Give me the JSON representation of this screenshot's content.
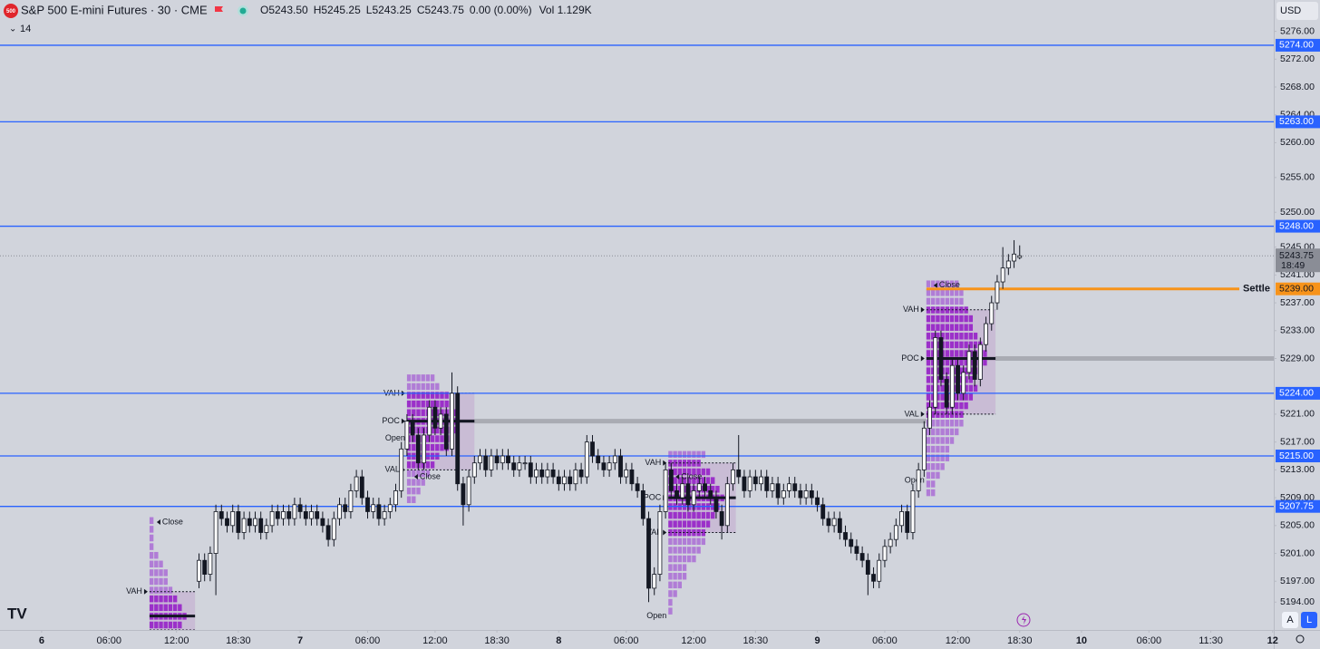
{
  "header": {
    "logo": "500",
    "symbol": "S&P 500 E-mini Futures · 30 · CME",
    "ohlc": [
      "O5243.50",
      "H5245.25",
      "L5243.25",
      "C5243.75",
      "0.00 (0.00%)"
    ],
    "volume": "Vol 1.129K",
    "indicator_count": "14",
    "currency": "USD",
    "buttons": [
      "A",
      "L"
    ]
  },
  "chart_data": {
    "type": "candlestick",
    "x": [
      28,
      29,
      30,
      31,
      32,
      33,
      34,
      35,
      36,
      37,
      38,
      39,
      40,
      41,
      42,
      43,
      44,
      45,
      46,
      47,
      48,
      49,
      50,
      51,
      52,
      53,
      54,
      55,
      56,
      57,
      58,
      59,
      60,
      61,
      62,
      63,
      64,
      65,
      66,
      67,
      68,
      69,
      70,
      71,
      72,
      73,
      74,
      75,
      76,
      77,
      78,
      79,
      80,
      81,
      82,
      83,
      84,
      85,
      86,
      87,
      88,
      89,
      90,
      91,
      92,
      93,
      94,
      95,
      96,
      97,
      98,
      99,
      100,
      101,
      102,
      103,
      104,
      105,
      106,
      107,
      108,
      109,
      110,
      111,
      112,
      113,
      114,
      115,
      116,
      117,
      118,
      119,
      120,
      121,
      122,
      123,
      124,
      125,
      126,
      127,
      128,
      129,
      130,
      131,
      132,
      133,
      134,
      135,
      136,
      137,
      138,
      139,
      140,
      141,
      142,
      143,
      144,
      145,
      146,
      147,
      148,
      149,
      150,
      151,
      152,
      153,
      154,
      155,
      156,
      157,
      158,
      159,
      160,
      161,
      162,
      163,
      164,
      165,
      166,
      167,
      168,
      169,
      170,
      171,
      172,
      173,
      174
    ],
    "open": [
      5197,
      5200,
      5198,
      5201,
      5207,
      5206,
      5205,
      5207,
      5204,
      5206,
      5205,
      5206,
      5204,
      5205,
      5207,
      5206,
      5207,
      5206,
      5208,
      5207,
      5206,
      5207,
      5206,
      5205,
      5203,
      5206,
      5208,
      5207,
      5210,
      5212,
      5209,
      5207,
      5208,
      5206,
      5207,
      5208,
      5210,
      5216,
      5220,
      5218,
      5214,
      5218,
      5222,
      5219,
      5221,
      5216,
      5224,
      5211,
      5208,
      5212,
      5214,
      5215,
      5213,
      5215,
      5214,
      5215,
      5214,
      5213,
      5214,
      5214,
      5212,
      5213,
      5212,
      5213,
      5212,
      5211,
      5212,
      5211,
      5213,
      5212,
      5217,
      5215,
      5214,
      5213,
      5214,
      5215,
      5212,
      5213,
      5211,
      5210,
      5206,
      5196,
      5198,
      5207,
      5213,
      5210,
      5209,
      5211,
      5208,
      5210,
      5211,
      5210,
      5209,
      5207,
      5205,
      5211,
      5213,
      5212,
      5210,
      5212,
      5211,
      5212,
      5210,
      5211,
      5209,
      5210,
      5211,
      5210,
      5209,
      5210,
      5209,
      5208,
      5206,
      5205,
      5206,
      5204,
      5203,
      5202,
      5201,
      5200,
      5198,
      5197,
      5200,
      5202,
      5203,
      5205,
      5207,
      5204,
      5210,
      5213,
      5219,
      5222,
      5232,
      5226,
      5222,
      5228,
      5224,
      5227,
      5230,
      5226,
      5231,
      5234,
      5237,
      5240,
      5242,
      5243,
      5243.5
    ],
    "high": [
      5201,
      5201,
      5202,
      5208,
      5208,
      5207,
      5208,
      5208,
      5207,
      5207,
      5207,
      5207,
      5206,
      5208,
      5208,
      5208,
      5208,
      5209,
      5209,
      5208,
      5208,
      5208,
      5207,
      5206,
      5207,
      5209,
      5209,
      5211,
      5213,
      5213,
      5210,
      5209,
      5209,
      5208,
      5209,
      5211,
      5217,
      5221,
      5221,
      5219,
      5219,
      5223,
      5223,
      5222,
      5222,
      5227,
      5225,
      5212,
      5213,
      5215,
      5216,
      5216,
      5216,
      5216,
      5216,
      5216,
      5215,
      5215,
      5215,
      5215,
      5214,
      5214,
      5214,
      5214,
      5213,
      5213,
      5213,
      5214,
      5214,
      5218,
      5218,
      5216,
      5215,
      5215,
      5216,
      5216,
      5214,
      5214,
      5212,
      5211,
      5207,
      5199,
      5208,
      5214,
      5214,
      5211,
      5212,
      5212,
      5211,
      5212,
      5212,
      5211,
      5210,
      5208,
      5212,
      5214,
      5218,
      5213,
      5213,
      5213,
      5213,
      5213,
      5212,
      5212,
      5211,
      5212,
      5212,
      5211,
      5211,
      5211,
      5210,
      5209,
      5207,
      5207,
      5207,
      5205,
      5204,
      5203,
      5202,
      5201,
      5199,
      5201,
      5203,
      5204,
      5206,
      5208,
      5208,
      5211,
      5214,
      5220,
      5223,
      5233,
      5233,
      5227,
      5229,
      5229,
      5228,
      5231,
      5231,
      5232,
      5235,
      5238,
      5241,
      5245,
      5244,
      5246,
      5245.25
    ],
    "low": [
      5196,
      5197,
      5197,
      5195,
      5205,
      5204,
      5204,
      5203,
      5203,
      5204,
      5204,
      5203,
      5203,
      5204,
      5205,
      5205,
      5205,
      5205,
      5206,
      5205,
      5205,
      5205,
      5204,
      5202,
      5202,
      5205,
      5206,
      5206,
      5209,
      5208,
      5206,
      5206,
      5205,
      5205,
      5206,
      5207,
      5209,
      5215,
      5217,
      5213,
      5213,
      5217,
      5218,
      5218,
      5215,
      5215,
      5210,
      5205,
      5207,
      5211,
      5213,
      5212,
      5212,
      5213,
      5213,
      5213,
      5212,
      5212,
      5213,
      5211,
      5211,
      5211,
      5211,
      5211,
      5210,
      5210,
      5210,
      5210,
      5211,
      5211,
      5214,
      5213,
      5212,
      5212,
      5213,
      5211,
      5211,
      5210,
      5209,
      5205,
      5194,
      5195,
      5197,
      5206,
      5209,
      5208,
      5208,
      5207,
      5207,
      5209,
      5209,
      5208,
      5206,
      5203,
      5204,
      5210,
      5211,
      5209,
      5209,
      5210,
      5210,
      5209,
      5209,
      5208,
      5208,
      5209,
      5209,
      5208,
      5208,
      5208,
      5207,
      5205,
      5204,
      5204,
      5203,
      5202,
      5201,
      5200,
      5199,
      5195,
      5196,
      5196,
      5199,
      5201,
      5202,
      5204,
      5203,
      5203,
      5209,
      5212,
      5218,
      5221,
      5225,
      5221,
      5221,
      5223,
      5223,
      5226,
      5225,
      5225,
      5230,
      5233,
      5236,
      5239,
      5241,
      5242,
      5243.25
    ],
    "close": [
      5200,
      5198,
      5201,
      5207,
      5206,
      5205,
      5207,
      5204,
      5206,
      5205,
      5206,
      5204,
      5205,
      5207,
      5206,
      5207,
      5206,
      5208,
      5207,
      5206,
      5207,
      5206,
      5205,
      5203,
      5206,
      5208,
      5207,
      5210,
      5212,
      5209,
      5207,
      5208,
      5206,
      5207,
      5208,
      5210,
      5216,
      5220,
      5218,
      5214,
      5218,
      5222,
      5219,
      5221,
      5216,
      5224,
      5211,
      5208,
      5212,
      5214,
      5215,
      5213,
      5215,
      5214,
      5215,
      5214,
      5213,
      5214,
      5214,
      5212,
      5213,
      5212,
      5213,
      5212,
      5211,
      5212,
      5211,
      5213,
      5212,
      5217,
      5215,
      5214,
      5213,
      5214,
      5215,
      5212,
      5213,
      5211,
      5210,
      5206,
      5196,
      5198,
      5207,
      5213,
      5210,
      5209,
      5211,
      5208,
      5210,
      5211,
      5210,
      5209,
      5207,
      5205,
      5211,
      5213,
      5212,
      5210,
      5212,
      5211,
      5212,
      5210,
      5211,
      5209,
      5210,
      5211,
      5210,
      5209,
      5210,
      5209,
      5208,
      5206,
      5205,
      5206,
      5204,
      5203,
      5202,
      5201,
      5200,
      5198,
      5197,
      5200,
      5202,
      5203,
      5205,
      5207,
      5204,
      5210,
      5213,
      5219,
      5222,
      5232,
      5226,
      5222,
      5228,
      5224,
      5227,
      5230,
      5226,
      5231,
      5234,
      5237,
      5240,
      5242,
      5243,
      5244,
      5243.75
    ],
    "xlim": [
      -7.4,
      219.2
    ],
    "xticks": [
      {
        "value": 0,
        "label": "6"
      },
      {
        "value": 12,
        "label": "06:00"
      },
      {
        "value": 24,
        "label": "12:00"
      },
      {
        "value": 35,
        "label": "18:30"
      },
      {
        "value": 46,
        "label": "7"
      },
      {
        "value": 58,
        "label": "06:00"
      },
      {
        "value": 70,
        "label": "12:00"
      },
      {
        "value": 81,
        "label": "18:30"
      },
      {
        "value": 92,
        "label": "8"
      },
      {
        "value": 104,
        "label": "06:00"
      },
      {
        "value": 116,
        "label": "12:00"
      },
      {
        "value": 127,
        "label": "18:30"
      },
      {
        "value": 138,
        "label": "9"
      },
      {
        "value": 150,
        "label": "06:00"
      },
      {
        "value": 163,
        "label": "12:00"
      },
      {
        "value": 174,
        "label": "18:30"
      },
      {
        "value": 185,
        "label": "10"
      },
      {
        "value": 197,
        "label": "06:00"
      },
      {
        "value": 208,
        "label": "11:30"
      },
      {
        "value": 219,
        "label": "12"
      }
    ],
    "ylim": [
      5190,
      5280.5
    ],
    "yticks": [
      {
        "value": 5276,
        "label": "5276.00"
      },
      {
        "value": 5272,
        "label": "5272.00"
      },
      {
        "value": 5268,
        "label": "5268.00"
      },
      {
        "value": 5264,
        "label": "5264.00"
      },
      {
        "value": 5260,
        "label": "5260.00"
      },
      {
        "value": 5255,
        "label": "5255.00"
      },
      {
        "value": 5250,
        "label": "5250.00"
      },
      {
        "value": 5245,
        "label": "5245.00"
      },
      {
        "value": 5241,
        "label": "5241.00"
      },
      {
        "value": 5237,
        "label": "5237.00"
      },
      {
        "value": 5233,
        "label": "5233.00"
      },
      {
        "value": 5229,
        "label": "5229.00"
      },
      {
        "value": 5221,
        "label": "5221.00"
      },
      {
        "value": 5217,
        "label": "5217.00"
      },
      {
        "value": 5213,
        "label": "5213.00"
      },
      {
        "value": 5209,
        "label": "5209.00"
      },
      {
        "value": 5205,
        "label": "5205.00"
      },
      {
        "value": 5201,
        "label": "5201.00"
      },
      {
        "value": 5197,
        "label": "5197.00"
      },
      {
        "value": 5194,
        "label": "5194.00"
      }
    ],
    "levels": [
      {
        "value": 5274,
        "label": "5274.00",
        "color": "#2962ff"
      },
      {
        "value": 5263,
        "label": "5263.00",
        "color": "#2962ff"
      },
      {
        "value": 5248,
        "label": "5248.00",
        "color": "#2962ff"
      },
      {
        "value": 5224,
        "label": "5224.00",
        "color": "#2962ff"
      },
      {
        "value": 5215,
        "label": "5215.00",
        "color": "#2962ff"
      },
      {
        "value": 5207.75,
        "label": "5207.75",
        "color": "#2962ff"
      }
    ],
    "settle": {
      "value": 5239,
      "label": "5239.00",
      "name": "Settle",
      "color": "#f7931a",
      "x_start": 157.4
    },
    "last_price": {
      "value": 5243.75,
      "label": "5243.75",
      "countdown": "18:49"
    },
    "profiles": [
      {
        "x": [
          19.2,
          27.3
        ],
        "low": 5190,
        "high": 5205.75,
        "vah": 5195.5,
        "poc": 5192,
        "val": 5190,
        "labels": {
          "vah": "VAH",
          "close": "Close"
        },
        "close": 5205.5
      },
      {
        "x": [
          65,
          77
        ],
        "low": 5208,
        "high": 5226.5,
        "vah": 5224,
        "poc": 5220,
        "val": 5213,
        "labels": {
          "vah": "VAH",
          "poc": "POC",
          "val": "VAL",
          "open": "Open",
          "close": "Close"
        },
        "open": 5217.5,
        "close": 5212,
        "naked_poc": 157.4
      },
      {
        "x": [
          111.5,
          123.5
        ],
        "low": 5192,
        "high": 5215.5,
        "vah": 5214,
        "poc": 5209,
        "val": 5204,
        "labels": {
          "vah": "VAH",
          "poc": "POC",
          "val": "VAL",
          "open": "Open",
          "close": "Close"
        },
        "open": 5192,
        "close": 5212
      },
      {
        "x": [
          157.4,
          169.7
        ],
        "low": 5209,
        "high": 5240.5,
        "vah": 5236,
        "poc": 5229,
        "val": 5221,
        "labels": {
          "vah": "VAH",
          "poc": "POC",
          "val": "VAL",
          "open": "Open",
          "close": "Close"
        },
        "open": 5211.5,
        "close": 5239.5,
        "naked_poc": 219.2
      }
    ]
  }
}
